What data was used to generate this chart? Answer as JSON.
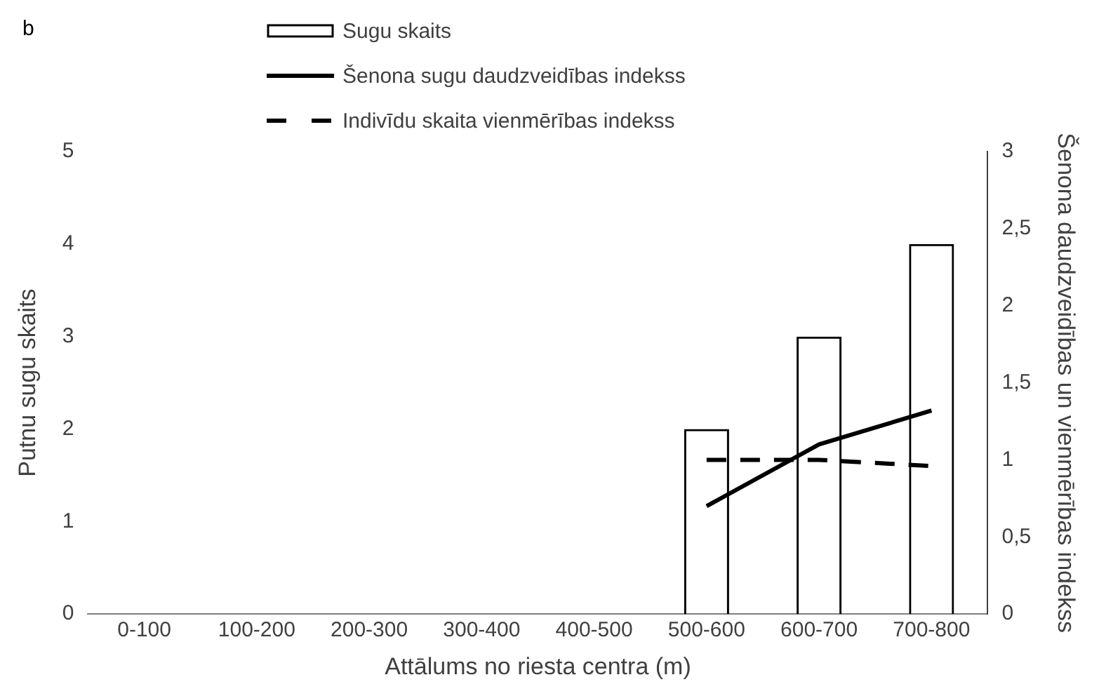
{
  "chart_data": {
    "type": "bar",
    "categories": [
      "0-100",
      "100-200",
      "200-300",
      "300-400",
      "400-500",
      "500-600",
      "600-700",
      "700-800"
    ],
    "xlabel": "Attālums no riesta centra (m)",
    "ylabel": "Putnu sugu skaits",
    "y2label": "Šenona daudzveidības un vienmērības indekss",
    "annotations": [
      "b"
    ],
    "series": [
      {
        "name": "Sugu skaits",
        "color": "#000000",
        "values": [
          0,
          0,
          0,
          0,
          0,
          2,
          3,
          4
        ]
      },
      {
        "name": "Šenona sugu daudzveidības indekss",
        "type": "line",
        "axis": "y2",
        "line_style": "solid",
        "color": "#000000",
        "values": [
          null,
          null,
          null,
          null,
          null,
          0.7,
          1.1,
          1.32
        ]
      },
      {
        "name": "Indivīdu skaita vienmērības indekss",
        "type": "line",
        "axis": "y2",
        "line_style": "dashed",
        "color": "#000000",
        "values": [
          null,
          null,
          null,
          null,
          null,
          1.0,
          1.0,
          0.96
        ]
      }
    ],
    "ylim": [
      0,
      5
    ],
    "yticks": [
      0,
      1,
      2,
      3,
      4,
      5
    ],
    "y2lim": [
      0,
      3
    ],
    "y2ticks": [
      0,
      {
        "value": 0.5,
        "label": "0,5"
      },
      1,
      {
        "value": 1.5,
        "label": "1,5"
      },
      2,
      {
        "value": 2.5,
        "label": "2,5"
      },
      3
    ],
    "legend": "top",
    "grid": false,
    "marker": "none"
  }
}
